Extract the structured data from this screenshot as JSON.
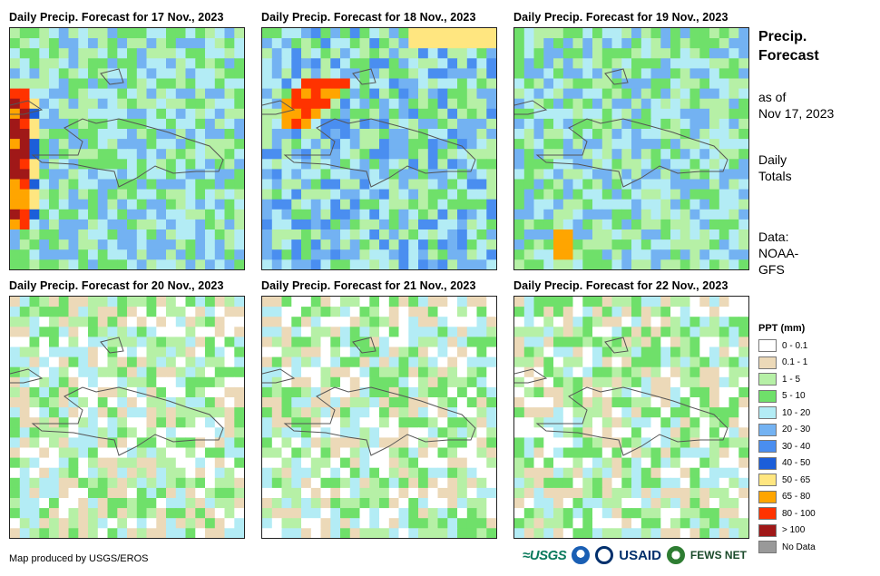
{
  "panels": [
    {
      "title": "Daily Precip. Forecast for 17 Nov., 2023"
    },
    {
      "title": "Daily Precip. Forecast for 18 Nov., 2023"
    },
    {
      "title": "Daily Precip. Forecast for 19 Nov., 2023"
    },
    {
      "title": "Daily Precip. Forecast for 20 Nov., 2023"
    },
    {
      "title": "Daily Precip. Forecast for 21 Nov., 2023"
    },
    {
      "title": "Daily Precip. Forecast for 22 Nov., 2023"
    }
  ],
  "side": {
    "title_line1": "Precip.",
    "title_line2": "Forecast",
    "asof_line1": "as of",
    "asof_line2": "Nov 17, 2023",
    "daily_line1": "Daily",
    "daily_line2": "Totals",
    "data_line1": "Data:",
    "data_line2": "NOAA-",
    "data_line3": "GFS"
  },
  "legend": {
    "title": "PPT (mm)",
    "items": [
      {
        "label": "0 - 0.1",
        "color": "#ffffff"
      },
      {
        "label": "0.1 - 1",
        "color": "#ecd9b8"
      },
      {
        "label": "1 - 5",
        "color": "#b6f0a6"
      },
      {
        "label": "5 - 10",
        "color": "#6fe06a"
      },
      {
        "label": "10 - 20",
        "color": "#b3ecf5"
      },
      {
        "label": "20 - 30",
        "color": "#73b2f2"
      },
      {
        "label": "30 - 40",
        "color": "#4a8ef0"
      },
      {
        "label": "40 - 50",
        "color": "#1c5ed9"
      },
      {
        "label": "50 - 65",
        "color": "#ffe680"
      },
      {
        "label": "65 - 80",
        "color": "#ffa500"
      },
      {
        "label": "80 - 100",
        "color": "#ff3300"
      },
      {
        "label": "> 100",
        "color": "#a01818"
      },
      {
        "label": "No Data",
        "color": "#999999"
      }
    ]
  },
  "footer": {
    "credit": "Map produced by USGS/EROS",
    "logo_usgs": "≈USGS",
    "logo_usaid": "USAID",
    "logo_fews": "FEWS NET"
  }
}
